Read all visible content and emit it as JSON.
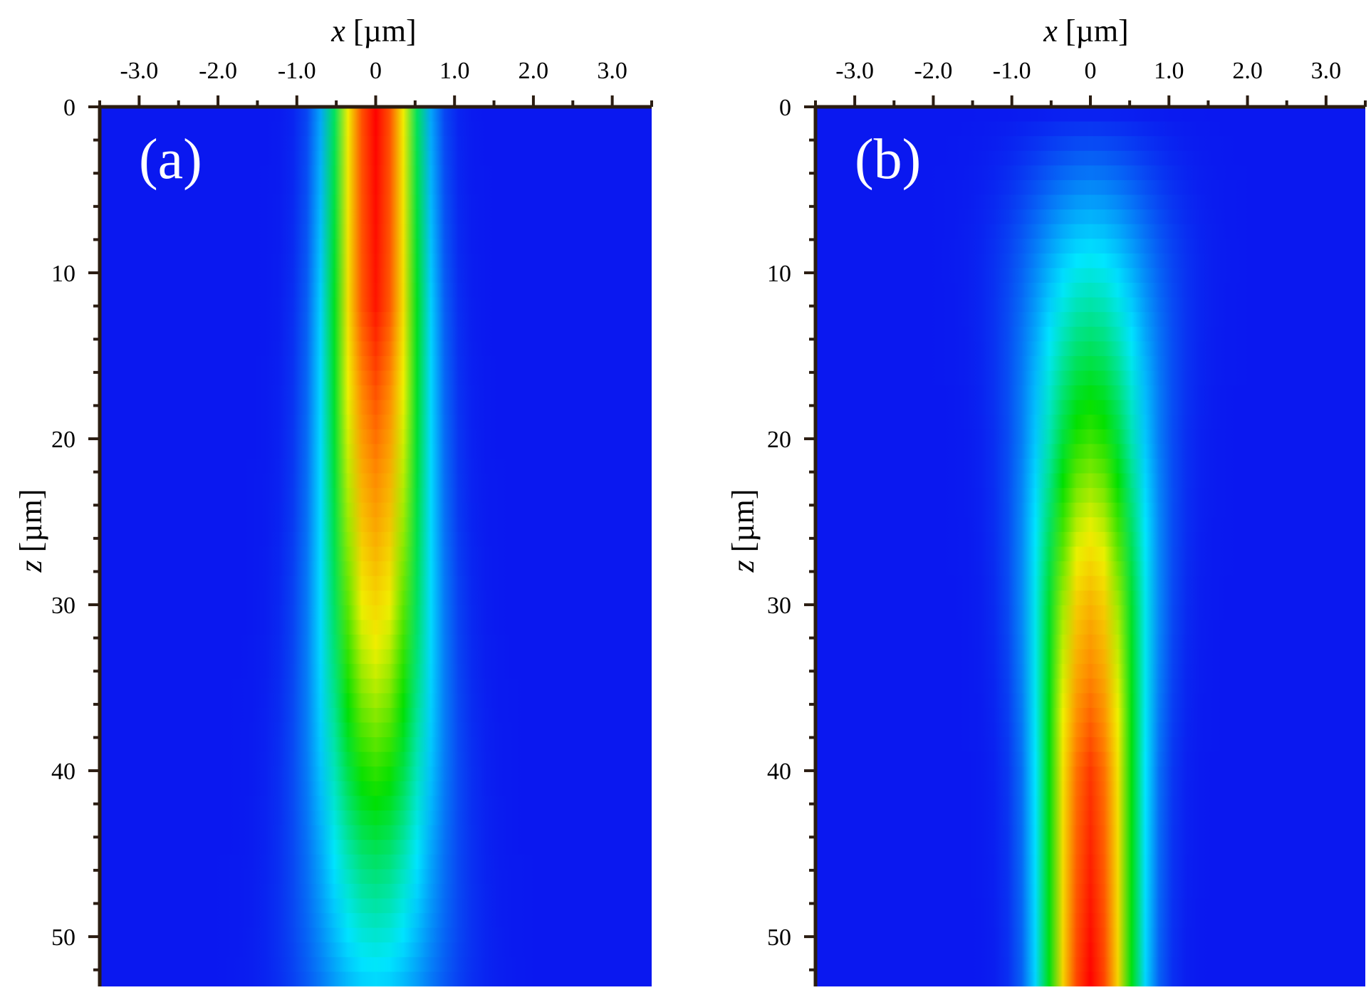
{
  "chart_data": [
    {
      "type": "heatmap",
      "panel_label": "(a)",
      "xlabel_var": "x",
      "xlabel_unit": " [µm]",
      "ylabel_var": "z",
      "ylabel_unit": " [µm]",
      "xlim": [
        -3.5,
        3.5
      ],
      "ylim": [
        0,
        53
      ],
      "x_ticks": [
        -3.0,
        -2.0,
        -1.0,
        0,
        1.0,
        2.0,
        3.0
      ],
      "x_tick_labels": [
        "-3.0",
        "-2.0",
        "-1.0",
        "0",
        "1.0",
        "2.0",
        "3.0"
      ],
      "y_ticks": [
        0,
        10,
        20,
        30,
        40,
        50
      ],
      "y_tick_labels": [
        "0",
        "10",
        "20",
        "30",
        "40",
        "50"
      ],
      "y_axis_direction": "downward",
      "description_of_field": "bright beam centered at x=0; intensity maximal near z=0 and decaying with depth",
      "peak_intensity_profile": [
        {
          "z": 0,
          "peak": 1.0,
          "width_um": 0.35
        },
        {
          "z": 12,
          "peak": 0.97,
          "width_um": 0.38
        },
        {
          "z": 25,
          "peak": 0.75,
          "width_um": 0.42
        },
        {
          "z": 35,
          "peak": 0.55,
          "width_um": 0.47
        },
        {
          "z": 45,
          "peak": 0.33,
          "width_um": 0.53
        },
        {
          "z": 53,
          "peak": 0.18,
          "width_um": 0.6
        }
      ],
      "colormap": [
        "#0a18f0",
        "#00e6ff",
        "#00e000",
        "#f0f000",
        "#ff8800",
        "#ff0000"
      ]
    },
    {
      "type": "heatmap",
      "panel_label": "(b)",
      "xlabel_var": "x",
      "xlabel_unit": " [µm]",
      "ylabel_var": "z",
      "ylabel_unit": " [µm]",
      "xlim": [
        -3.5,
        3.5
      ],
      "ylim": [
        0,
        53
      ],
      "x_ticks": [
        -3.0,
        -2.0,
        -1.0,
        0,
        1.0,
        2.0,
        3.0
      ],
      "x_tick_labels": [
        "-3.0",
        "-2.0",
        "-1.0",
        "0",
        "1.0",
        "2.0",
        "3.0"
      ],
      "y_ticks": [
        0,
        10,
        20,
        30,
        40,
        50
      ],
      "y_tick_labels": [
        "0",
        "10",
        "20",
        "30",
        "40",
        "50"
      ],
      "y_axis_direction": "downward",
      "description_of_field": "beam centered at x=0 emerging near z=8 and growing in intensity with depth, maximal at z=53",
      "peak_intensity_profile": [
        {
          "z": 0,
          "peak": 0.0,
          "width_um": 0.6
        },
        {
          "z": 8,
          "peak": 0.18,
          "width_um": 0.6
        },
        {
          "z": 20,
          "peak": 0.45,
          "width_um": 0.5
        },
        {
          "z": 30,
          "peak": 0.72,
          "width_um": 0.45
        },
        {
          "z": 40,
          "peak": 0.92,
          "width_um": 0.4
        },
        {
          "z": 53,
          "peak": 1.0,
          "width_um": 0.38
        }
      ],
      "colormap": [
        "#0a18f0",
        "#00e6ff",
        "#00e000",
        "#f0f000",
        "#ff8800",
        "#ff0000"
      ]
    }
  ]
}
